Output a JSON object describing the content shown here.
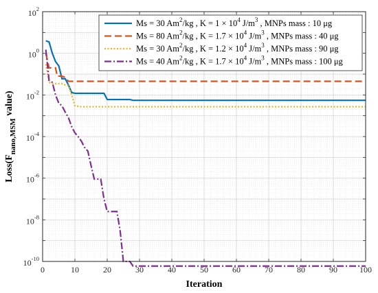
{
  "chart_data": {
    "type": "line",
    "title": "",
    "xlabel": "Iteration",
    "ylabel": {
      "main": "Loss(F",
      "sub": "nano,MSM",
      "tail": " value)"
    },
    "xlim": [
      0,
      100
    ],
    "ylim_log10": [
      -10,
      2
    ],
    "y_scale": "log",
    "grid": true,
    "minor_grid": true,
    "legend_position": "top-right",
    "x_ticks": [
      "0",
      "10",
      "20",
      "30",
      "40",
      "50",
      "60",
      "70",
      "80",
      "90",
      "100"
    ],
    "y_ticks": [
      {
        "base": "10",
        "exp": "2"
      },
      {
        "base": "10",
        "exp": "0"
      },
      {
        "base": "10",
        "exp": "-2"
      },
      {
        "base": "10",
        "exp": "-4"
      },
      {
        "base": "10",
        "exp": "-6"
      },
      {
        "base": "10",
        "exp": "-8"
      },
      {
        "base": "10",
        "exp": "-10"
      }
    ],
    "series": [
      {
        "legend": [
          {
            "t": "Ms = 30 Am"
          },
          {
            "t": "2",
            "sup": true
          },
          {
            "t": "/kg , K = 1 × 10"
          },
          {
            "t": "4",
            "sup": true
          },
          {
            "t": " J/m"
          },
          {
            "t": "3",
            "sup": true
          },
          {
            "t": " , MNPs mass : 10 μg"
          }
        ],
        "color": "#0072BD",
        "dash": "solid",
        "points": [
          [
            1,
            4
          ],
          [
            2,
            3.5
          ],
          [
            3,
            1
          ],
          [
            4,
            0.4
          ],
          [
            5,
            0.25
          ],
          [
            6,
            0.06
          ],
          [
            7,
            0.06
          ],
          [
            8,
            0.03
          ],
          [
            9,
            0.013
          ],
          [
            10,
            0.012
          ],
          [
            19,
            0.012
          ],
          [
            20,
            0.006
          ],
          [
            27,
            0.006
          ],
          [
            28,
            0.0055
          ],
          [
            100,
            0.0055
          ]
        ]
      },
      {
        "legend": [
          {
            "t": "Ms = 80 Am"
          },
          {
            "t": "2",
            "sup": true
          },
          {
            "t": "/kg , K = 1.7 × 10"
          },
          {
            "t": "4",
            "sup": true
          },
          {
            "t": " J/m"
          },
          {
            "t": "3",
            "sup": true
          },
          {
            "t": " , MNPs mass : 40 μg"
          }
        ],
        "color": "#D95319",
        "dash": "10,5",
        "points": [
          [
            1,
            1
          ],
          [
            2,
            0.2
          ],
          [
            3,
            0.2
          ],
          [
            4,
            0.2
          ],
          [
            4.5,
            0.08
          ],
          [
            6,
            0.08
          ],
          [
            7,
            0.07
          ],
          [
            8,
            0.045
          ],
          [
            100,
            0.045
          ]
        ]
      },
      {
        "legend": [
          {
            "t": "Ms = 30 Am"
          },
          {
            "t": "2",
            "sup": true
          },
          {
            "t": "/kg , K = 1.2 × 10"
          },
          {
            "t": "4",
            "sup": true
          },
          {
            "t": " J/m"
          },
          {
            "t": "3",
            "sup": true
          },
          {
            "t": " , MNPs mass : 90 μg"
          }
        ],
        "color": "#EDB120",
        "dash": "2,2.5",
        "points": [
          [
            1,
            0.3
          ],
          [
            2,
            0.04
          ],
          [
            3,
            0.035
          ],
          [
            4,
            0.035
          ],
          [
            5,
            0.035
          ],
          [
            6,
            0.035
          ],
          [
            7,
            0.03
          ],
          [
            8,
            0.028
          ],
          [
            9,
            0.01
          ],
          [
            10,
            0.003
          ],
          [
            12,
            0.0027
          ],
          [
            100,
            0.0027
          ]
        ]
      },
      {
        "legend": [
          {
            "t": "Ms = 40 Am"
          },
          {
            "t": "2",
            "sup": true
          },
          {
            "t": "/kg , K = 1.7 × 10"
          },
          {
            "t": "4",
            "sup": true
          },
          {
            "t": " J/m"
          },
          {
            "t": "3",
            "sup": true
          },
          {
            "t": " , MNPs mass : 100 μg"
          }
        ],
        "color": "#7E2F8E",
        "dash": "10,3,2,3",
        "points": [
          [
            1,
            1.5
          ],
          [
            2,
            0.05
          ],
          [
            3,
            0.04
          ],
          [
            4,
            0.01
          ],
          [
            5,
            0.004
          ],
          [
            6,
            0.003
          ],
          [
            7,
            0.0015
          ],
          [
            8,
            0.0008
          ],
          [
            9,
            0.0003
          ],
          [
            10,
            0.00015
          ],
          [
            11,
            0.0001
          ],
          [
            12,
            6e-05
          ],
          [
            13,
            3e-05
          ],
          [
            14,
            2e-05
          ],
          [
            15,
            4e-06
          ],
          [
            16,
            9e-07
          ],
          [
            18,
            9e-07
          ],
          [
            19,
            1e-07
          ],
          [
            20,
            2.5e-08
          ],
          [
            23,
            2.5e-08
          ],
          [
            24,
            3e-09
          ],
          [
            25,
            1e-10
          ],
          [
            27,
            1e-10
          ],
          [
            28,
            6e-11
          ],
          [
            100,
            6e-11
          ]
        ]
      }
    ]
  }
}
